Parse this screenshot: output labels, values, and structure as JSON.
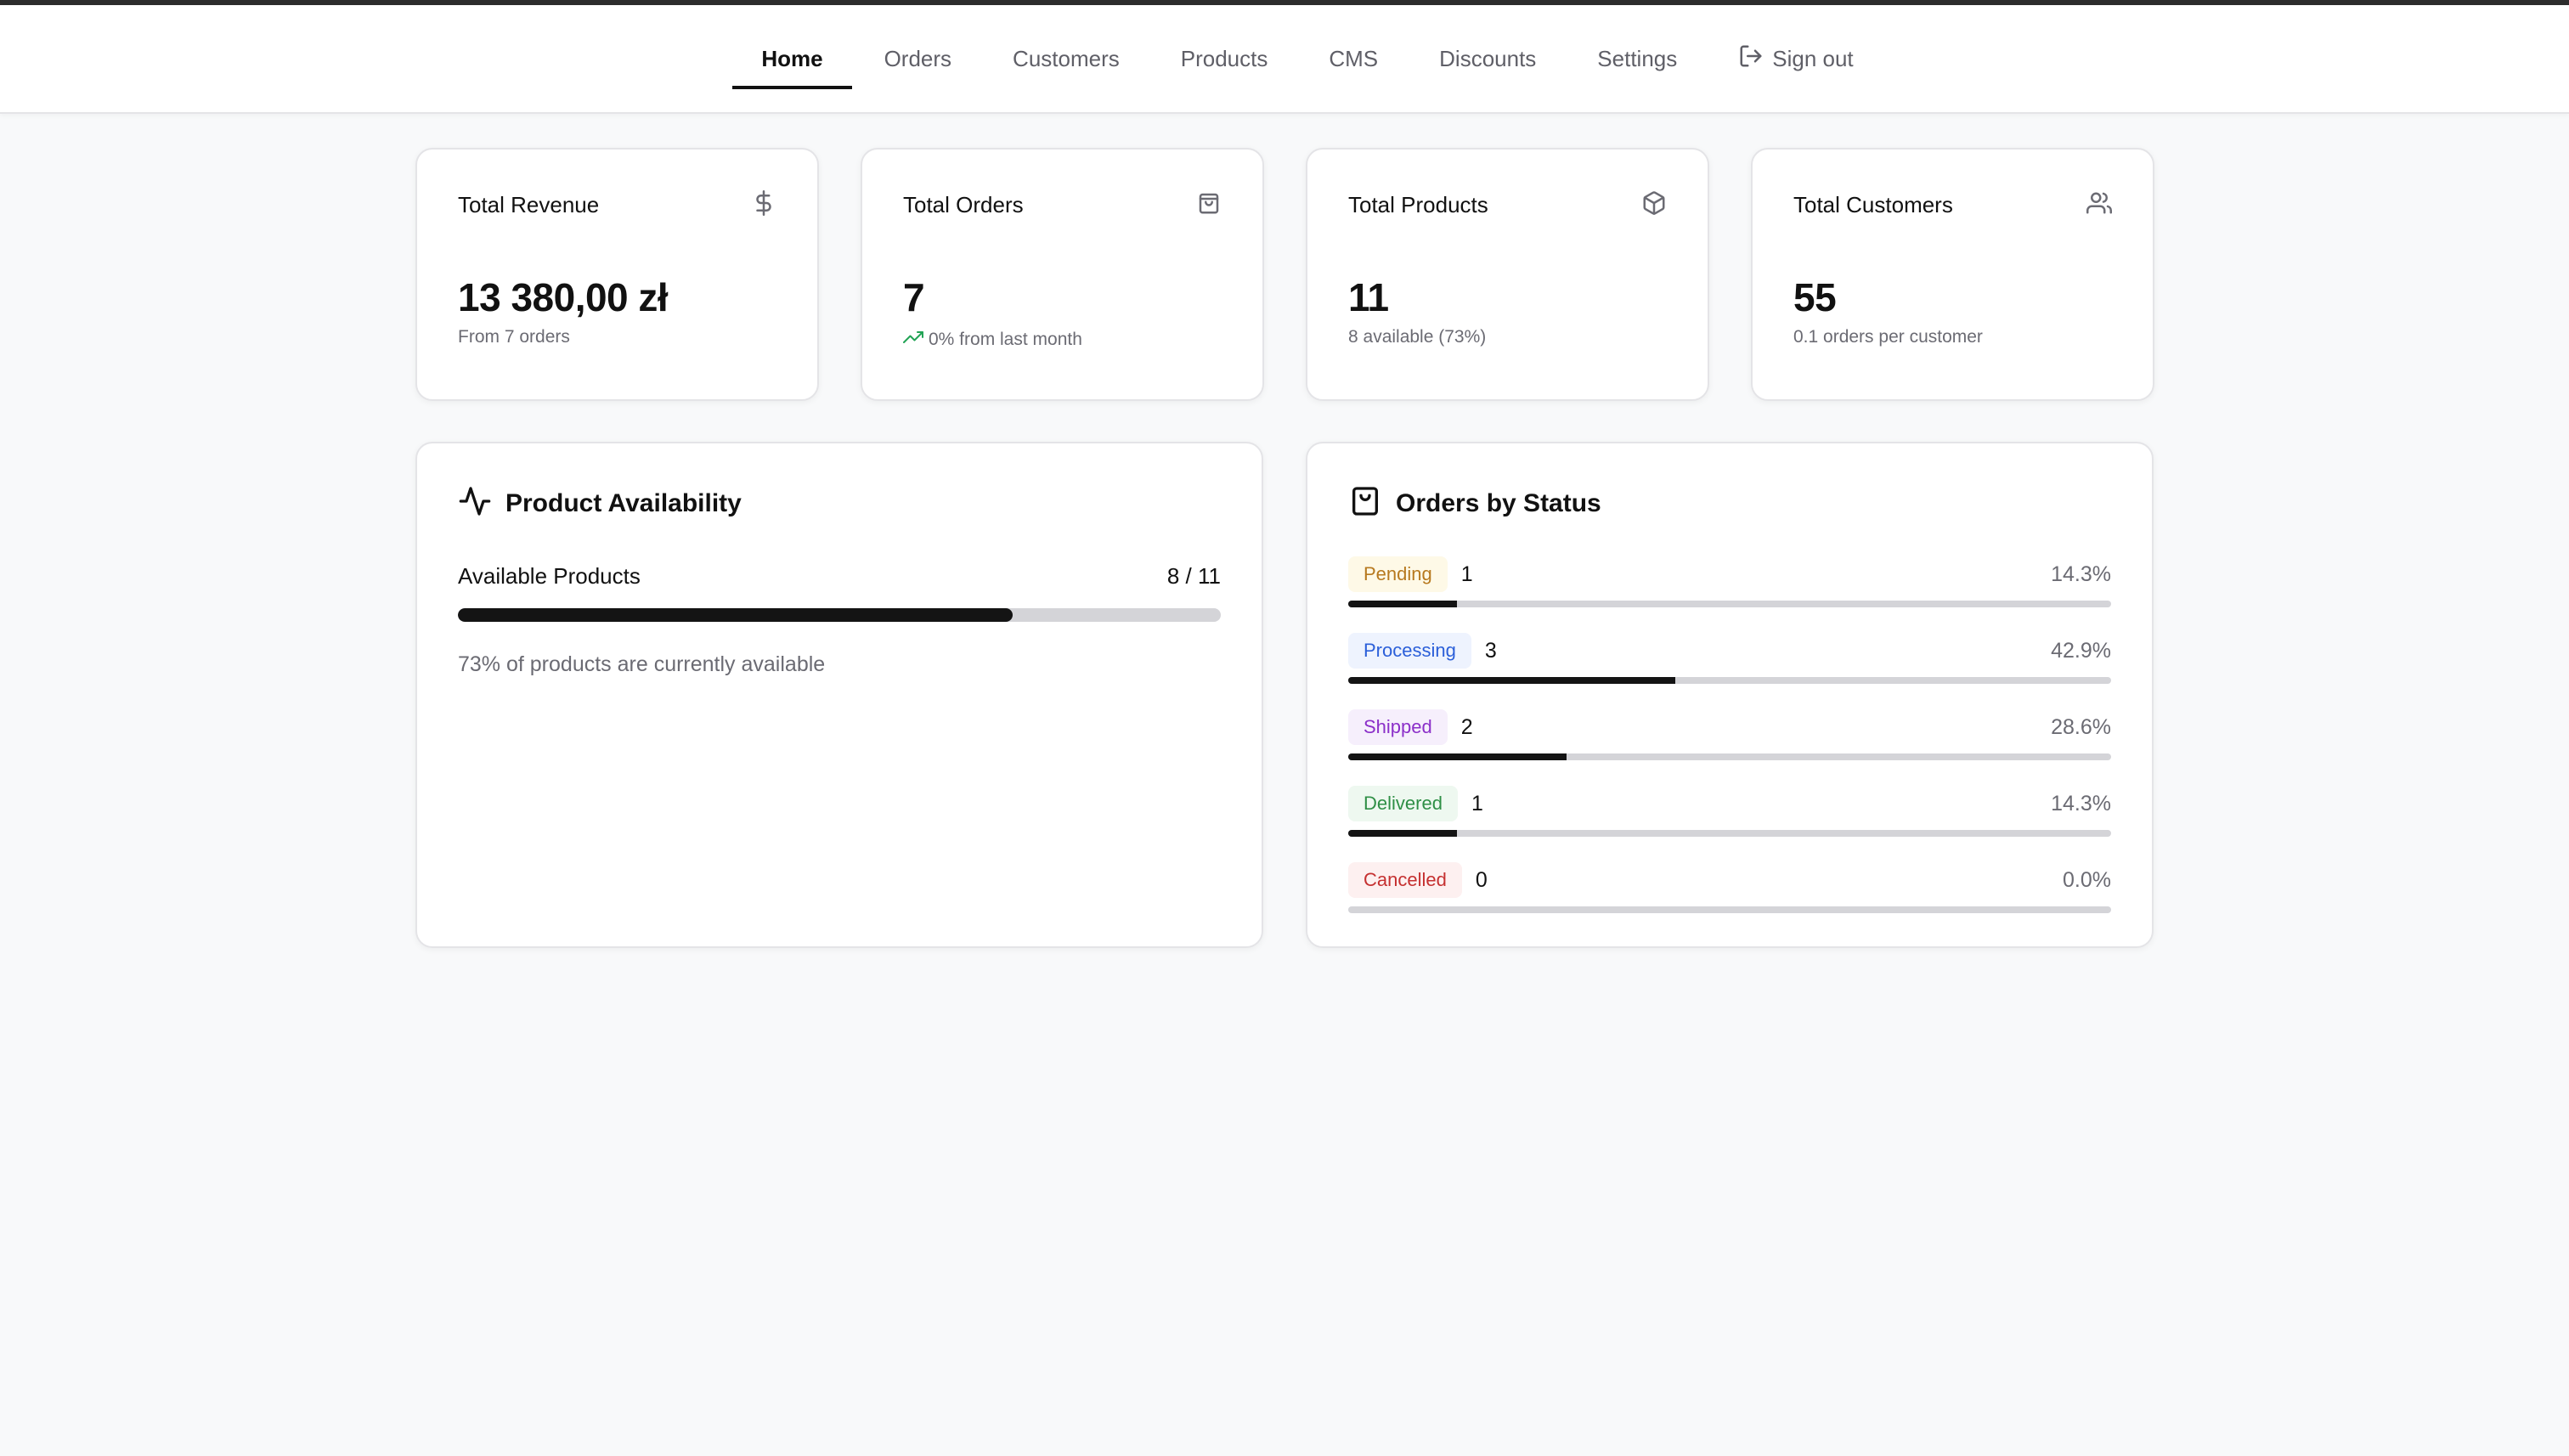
{
  "nav": {
    "items": [
      {
        "label": "Home",
        "active": true
      },
      {
        "label": "Orders"
      },
      {
        "label": "Customers"
      },
      {
        "label": "Products"
      },
      {
        "label": "CMS"
      },
      {
        "label": "Discounts"
      },
      {
        "label": "Settings"
      }
    ],
    "signout_label": "Sign out"
  },
  "stats": [
    {
      "title": "Total Revenue",
      "value": "13 380,00 zł",
      "sub": "From 7 orders",
      "icon": "dollar-icon"
    },
    {
      "title": "Total Orders",
      "value": "7",
      "sub": "0% from last month",
      "icon": "shopping-bag-icon"
    },
    {
      "title": "Total Products",
      "value": "11",
      "sub": "8 available (73%)",
      "icon": "package-icon"
    },
    {
      "title": "Total Customers",
      "value": "55",
      "sub": "0.1 orders per customer",
      "icon": "users-icon"
    }
  ],
  "availability": {
    "title": "Product Availability",
    "label": "Available Products",
    "ratio": "8 / 11",
    "fraction": 0.727,
    "note": "73% of products are currently available"
  },
  "orders_status": {
    "title": "Orders by Status",
    "items": [
      {
        "label": "Pending",
        "count": "1",
        "pct": "14.3%",
        "fraction": 0.143,
        "color": "#b7791f",
        "bg": "#fef9e7"
      },
      {
        "label": "Processing",
        "count": "3",
        "pct": "42.9%",
        "fraction": 0.429,
        "color": "#2b5fd9",
        "bg": "#eef3fe"
      },
      {
        "label": "Shipped",
        "count": "2",
        "pct": "28.6%",
        "fraction": 0.286,
        "color": "#8b2fc9",
        "bg": "#f6effc"
      },
      {
        "label": "Delivered",
        "count": "1",
        "pct": "14.3%",
        "fraction": 0.143,
        "color": "#2f8f46",
        "bg": "#eef8f0"
      },
      {
        "label": "Cancelled",
        "count": "0",
        "pct": "0.0%",
        "fraction": 0.0,
        "color": "#c53030",
        "bg": "#fdf0f0"
      }
    ]
  },
  "colors": {
    "accent": "#111111",
    "trend_up": "#22a355"
  }
}
